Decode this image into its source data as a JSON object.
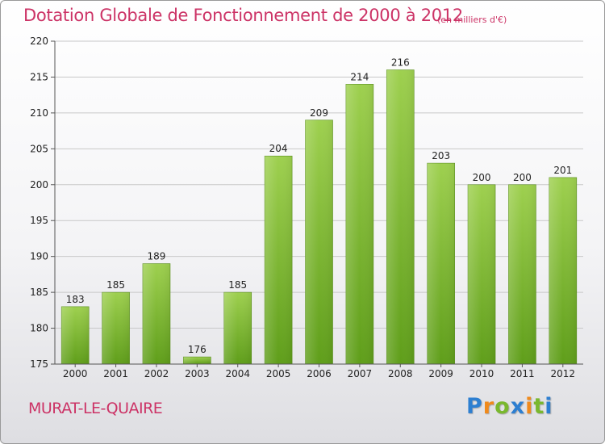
{
  "chart_data": {
    "type": "bar",
    "title": "Dotation Globale de Fonctionnement de 2000 à 2012",
    "unit_note": "(en milliers d'€)",
    "categories": [
      "2000",
      "2001",
      "2002",
      "2003",
      "2004",
      "2005",
      "2006",
      "2007",
      "2008",
      "2009",
      "2010",
      "2011",
      "2012"
    ],
    "values": [
      183,
      185,
      189,
      176,
      185,
      204,
      209,
      214,
      216,
      203,
      200,
      200,
      201
    ],
    "ylim": [
      175,
      220
    ],
    "yticks": [
      175,
      180,
      185,
      190,
      195,
      200,
      205,
      210,
      215,
      220
    ],
    "grid": true,
    "bar_color": "#7ab82e",
    "xlabel": "",
    "ylabel": ""
  },
  "footer": {
    "commune": "MURAT-LE-QUAIRE",
    "brand_letters": [
      {
        "ch": "P",
        "color": "#2d7fd1"
      },
      {
        "ch": "r",
        "color": "#f08a1c"
      },
      {
        "ch": "o",
        "color": "#7ab82e"
      },
      {
        "ch": "x",
        "color": "#2d7fd1"
      },
      {
        "ch": "i",
        "color": "#f08a1c"
      },
      {
        "ch": "t",
        "color": "#7ab82e"
      },
      {
        "ch": "i",
        "color": "#2d7fd1"
      }
    ]
  }
}
